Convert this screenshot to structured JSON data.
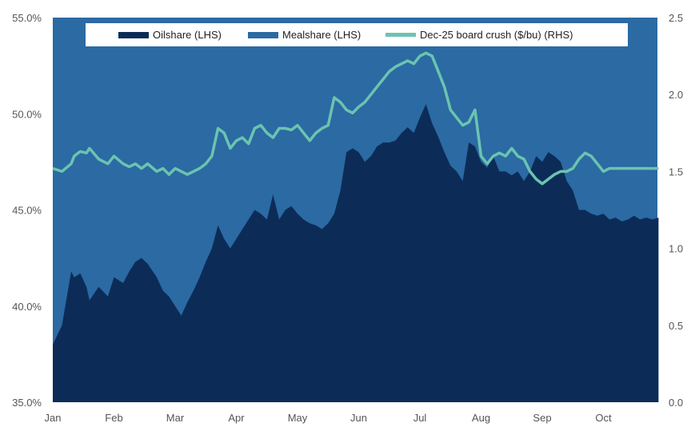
{
  "colors": {
    "oilshare": "#0c2c57",
    "mealshare": "#2b6aa3",
    "crush": "#6cc3b0",
    "axis_text": "#555555"
  },
  "chart_data": {
    "type": "area",
    "title": "",
    "xlabel": "",
    "ylabel_left": "",
    "ylabel_right": "",
    "x_tick_labels": [
      "Jan",
      "Feb",
      "Mar",
      "Apr",
      "May",
      "Jun",
      "Jul",
      "Aug",
      "Sep",
      "Oct"
    ],
    "y_left": {
      "lim": [
        35.0,
        55.0
      ],
      "ticks": [
        "35.0%",
        "40.0%",
        "45.0%",
        "50.0%",
        "55.0%"
      ]
    },
    "y_right": {
      "lim": [
        0.0,
        2.5
      ],
      "ticks": [
        "0.0",
        "0.5",
        "1.0",
        "1.5",
        "2.0",
        "2.5"
      ]
    },
    "legend": {
      "placement": "top-center",
      "entries": [
        "Oilshare (LHS)",
        "Mealshare (LHS)",
        "Dec-25 board crush ($/bu) (RHS)"
      ]
    },
    "x_month_index": [
      0.0,
      0.15,
      0.3,
      0.35,
      0.45,
      0.55,
      0.6,
      0.75,
      0.9,
      1.0,
      1.15,
      1.25,
      1.35,
      1.45,
      1.55,
      1.7,
      1.8,
      1.9,
      2.0,
      2.1,
      2.2,
      2.3,
      2.4,
      2.5,
      2.6,
      2.7,
      2.8,
      2.9,
      3.0,
      3.1,
      3.2,
      3.3,
      3.4,
      3.5,
      3.6,
      3.7,
      3.8,
      3.9,
      4.0,
      4.1,
      4.2,
      4.3,
      4.4,
      4.5,
      4.6,
      4.7,
      4.8,
      4.9,
      5.0,
      5.1,
      5.2,
      5.3,
      5.4,
      5.5,
      5.6,
      5.7,
      5.8,
      5.9,
      6.0,
      6.1,
      6.2,
      6.3,
      6.4,
      6.5,
      6.6,
      6.7,
      6.8,
      6.9,
      7.0,
      7.1,
      7.2,
      7.3,
      7.4,
      7.5,
      7.6,
      7.7,
      7.8,
      7.9,
      8.0,
      8.1,
      8.2,
      8.3,
      8.4,
      8.5,
      8.6,
      8.7,
      8.8,
      8.9,
      9.0,
      9.1,
      9.2,
      9.3,
      9.4,
      9.5,
      9.6,
      9.7,
      9.8,
      9.9
    ],
    "series": [
      {
        "name": "Oilshare (LHS)",
        "axis": "left",
        "kind": "area",
        "values": [
          38.0,
          39.0,
          41.8,
          41.5,
          41.7,
          41.0,
          40.3,
          41.0,
          40.5,
          41.5,
          41.2,
          41.8,
          42.3,
          42.5,
          42.2,
          41.5,
          40.8,
          40.5,
          40.0,
          39.5,
          40.2,
          40.8,
          41.5,
          42.3,
          43.0,
          44.2,
          43.5,
          43.0,
          43.5,
          44.0,
          44.5,
          45.0,
          44.8,
          44.5,
          45.8,
          44.5,
          45.0,
          45.2,
          44.8,
          44.5,
          44.3,
          44.2,
          44.0,
          44.3,
          44.8,
          46.0,
          48.0,
          48.2,
          48.0,
          47.5,
          47.8,
          48.3,
          48.5,
          48.5,
          48.6,
          49.0,
          49.3,
          49.0,
          49.8,
          50.5,
          49.5,
          48.8,
          48.0,
          47.3,
          47.0,
          46.5,
          48.5,
          48.3,
          47.5,
          47.2,
          47.8,
          47.0,
          47.0,
          46.8,
          47.0,
          46.5,
          47.0,
          47.8,
          47.5,
          48.0,
          47.8,
          47.5,
          46.5,
          46.0,
          45.0,
          45.0,
          44.8,
          44.7,
          44.8,
          44.5,
          44.6,
          44.4,
          44.5,
          44.7,
          44.5,
          44.6,
          44.5,
          44.6
        ]
      },
      {
        "name": "Mealshare (LHS)",
        "axis": "left",
        "kind": "area_above",
        "values": []
      },
      {
        "name": "Dec-25 board crush ($/bu) (RHS)",
        "axis": "right",
        "kind": "line",
        "values": [
          1.52,
          1.5,
          1.55,
          1.6,
          1.63,
          1.62,
          1.65,
          1.58,
          1.55,
          1.6,
          1.55,
          1.53,
          1.55,
          1.52,
          1.55,
          1.5,
          1.52,
          1.48,
          1.52,
          1.5,
          1.48,
          1.5,
          1.52,
          1.55,
          1.6,
          1.78,
          1.75,
          1.65,
          1.7,
          1.72,
          1.68,
          1.78,
          1.8,
          1.75,
          1.72,
          1.78,
          1.78,
          1.77,
          1.8,
          1.75,
          1.7,
          1.75,
          1.78,
          1.8,
          1.98,
          1.95,
          1.9,
          1.88,
          1.92,
          1.95,
          2.0,
          2.05,
          2.1,
          2.15,
          2.18,
          2.2,
          2.22,
          2.2,
          2.25,
          2.27,
          2.25,
          2.15,
          2.05,
          1.9,
          1.85,
          1.8,
          1.82,
          1.9,
          1.6,
          1.55,
          1.6,
          1.62,
          1.6,
          1.65,
          1.6,
          1.58,
          1.5,
          1.45,
          1.42,
          1.45,
          1.48,
          1.5,
          1.5,
          1.52,
          1.58,
          1.62,
          1.6,
          1.55,
          1.5,
          1.52,
          1.52,
          1.52,
          1.52,
          1.52,
          1.52,
          1.52,
          1.52,
          1.52
        ]
      }
    ]
  }
}
